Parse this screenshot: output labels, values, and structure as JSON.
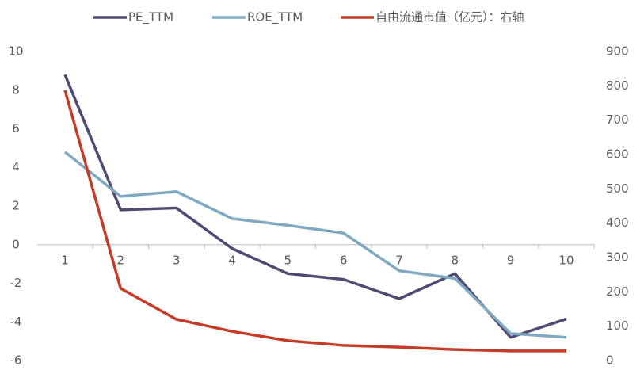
{
  "chart_data": {
    "type": "line",
    "categories": [
      "1",
      "2",
      "3",
      "4",
      "5",
      "6",
      "7",
      "8",
      "9",
      "10"
    ],
    "series": [
      {
        "name": "PE_TTM",
        "color": "#4f4a72",
        "values": [
          8.8,
          1.8,
          1.9,
          -0.2,
          -1.5,
          -1.8,
          -2.8,
          -1.5,
          -4.8,
          -3.85
        ]
      },
      {
        "name": "ROE_TTM",
        "color": "#7faac2",
        "values": [
          4.8,
          2.5,
          2.75,
          1.35,
          1.0,
          0.6,
          -1.35,
          -1.75,
          -4.6,
          -4.8
        ]
      },
      {
        "name": "自由流通市值（亿元）：右轴",
        "color": "#c63b25",
        "axis": "y2",
        "values": [
          787,
          210,
          120,
          85,
          58,
          44,
          39,
          32,
          28,
          28
        ]
      }
    ],
    "ylim": [
      -6,
      10
    ],
    "yticks": [
      -6,
      -4,
      -2,
      0,
      2,
      4,
      6,
      8,
      10
    ],
    "y2lim": [
      0,
      900
    ],
    "y2ticks": [
      0,
      100,
      200,
      300,
      400,
      500,
      600,
      700,
      800,
      900
    ],
    "legend": "top"
  }
}
